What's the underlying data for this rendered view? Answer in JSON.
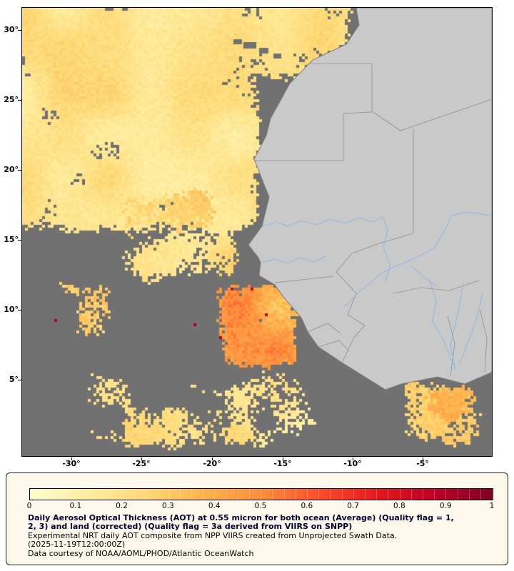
{
  "map": {
    "colors": {
      "ocean_nodata": "#717171",
      "land": "#c9c9c9",
      "land_border": "#8f8f8f",
      "coastline": "#7e7e7e",
      "river": "#8fb9e6",
      "frame": "#000000",
      "legend_bg": "#fdf9ec",
      "title_color": "#000033"
    },
    "axes": {
      "lat_labels": [
        "30°",
        "25°",
        "20°",
        "15°",
        "10°",
        "5°"
      ],
      "lon_labels": [
        "-30°",
        "-25°",
        "-20°",
        "-15°",
        "-10°",
        "-5°"
      ]
    }
  },
  "colorbar": {
    "ticks": [
      "0",
      "0.1",
      "0.2",
      "0.3",
      "0.4",
      "0.5",
      "0.6",
      "0.7",
      "0.8",
      "0.9",
      "1"
    ],
    "stops": [
      {
        "v": 0.0,
        "c": "#ffffcc"
      },
      {
        "v": 0.125,
        "c": "#ffeda0"
      },
      {
        "v": 0.25,
        "c": "#fed976"
      },
      {
        "v": 0.375,
        "c": "#feb24c"
      },
      {
        "v": 0.5,
        "c": "#fd8d3c"
      },
      {
        "v": 0.625,
        "c": "#fc4e2a"
      },
      {
        "v": 0.75,
        "c": "#e31a1c"
      },
      {
        "v": 0.875,
        "c": "#bd0026"
      },
      {
        "v": 1.0,
        "c": "#800026"
      }
    ]
  },
  "caption": {
    "title_line1": "Daily Aerosol Optical Thickness (AOT) at 0.55 micron for both ocean (Average) (Quality flag = 1,",
    "title_line2": "2, 3) and land (corrected) (Quality flag = 3a derived from VIIRS on SNPP)",
    "line3": "Experimental NRT daily AOT composite from NPP VIIRS created from Unprojected Swath Data.",
    "line4": "(2025-11-19T12:00:00Z)",
    "line5": "Data courtesy of NOAA/AOML/PHOD/Atlantic OceanWatch"
  },
  "chart_data": {
    "type": "heatmap",
    "title": "Daily Aerosol Optical Thickness (AOT) at 0.55 micron",
    "colorbar_range": [
      0,
      1
    ],
    "colorbar_ticks": [
      0,
      0.1,
      0.2,
      0.3,
      0.4,
      0.5,
      0.6,
      0.7,
      0.8,
      0.9,
      1
    ],
    "x_tick_values_deg_lon": [
      -30,
      -25,
      -20,
      -15,
      -10,
      -5
    ],
    "y_tick_values_deg_lat": [
      30,
      25,
      20,
      15,
      10,
      5
    ],
    "legend_position": "bottom",
    "notes": "Pale yellow to orange raster = AOT values over ocean; dark gray = no data; light gray = land"
  }
}
